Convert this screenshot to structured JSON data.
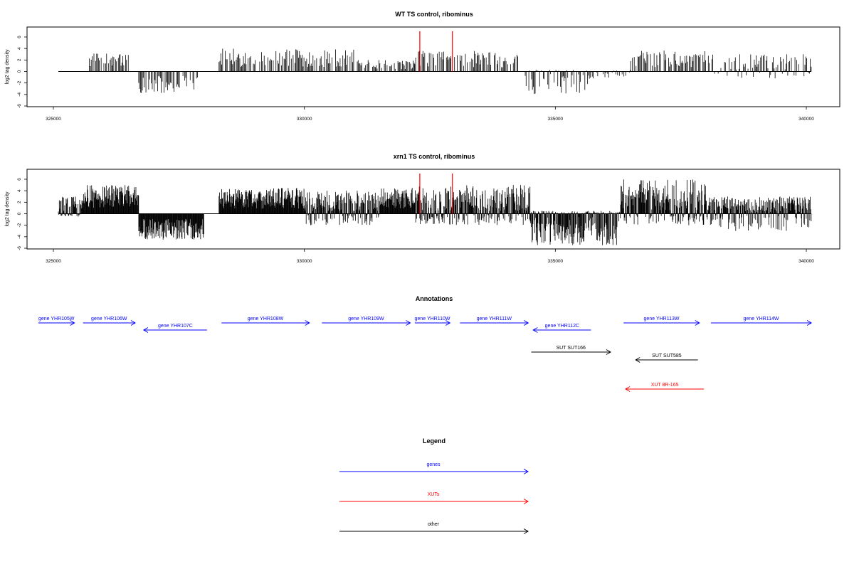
{
  "chart_data": [
    {
      "type": "bar",
      "title": "WT TS control, ribominus",
      "ylabel": "log2 tag density",
      "xlabel": "",
      "xlim": [
        325000,
        340100
      ],
      "ylim": [
        -6,
        7
      ],
      "xticks": [
        325000,
        330000,
        335000,
        340000
      ],
      "yticks": [
        -6,
        -4,
        -2,
        0,
        2,
        4,
        6
      ],
      "grid": false,
      "highlight_positions": [
        332300,
        332950
      ],
      "highlight_color": "#ff0000",
      "signal_regions": [
        {
          "start": 325100,
          "end": 325110,
          "min": 0,
          "max": 1
        },
        {
          "start": 325700,
          "end": 326500,
          "min": 0,
          "max": 3.2
        },
        {
          "start": 326700,
          "end": 327900,
          "min": -4,
          "max": 0
        },
        {
          "start": 328300,
          "end": 331000,
          "min": 0,
          "max": 4
        },
        {
          "start": 331000,
          "end": 332200,
          "min": 0,
          "max": 2
        },
        {
          "start": 332200,
          "end": 334300,
          "min": 0,
          "max": 3.6
        },
        {
          "start": 334400,
          "end": 335700,
          "min": -4,
          "max": 0.3
        },
        {
          "start": 335700,
          "end": 336500,
          "min": -1.2,
          "max": 0.5
        },
        {
          "start": 336500,
          "end": 338100,
          "min": 0,
          "max": 3.8
        },
        {
          "start": 338100,
          "end": 340100,
          "min": -1.2,
          "max": 3
        }
      ]
    },
    {
      "type": "bar",
      "title": "xrn1 TS control, ribominus",
      "ylabel": "log2 tag density",
      "xlabel": "",
      "xlim": [
        325000,
        340100
      ],
      "ylim": [
        -6,
        7
      ],
      "xticks": [
        325000,
        330000,
        335000,
        340000
      ],
      "yticks": [
        -6,
        -4,
        -2,
        0,
        2,
        4,
        6
      ],
      "grid": false,
      "highlight_positions": [
        332300,
        332950
      ],
      "highlight_color": "#ff0000",
      "signal_regions": [
        {
          "start": 325100,
          "end": 325600,
          "min": -0.5,
          "max": 3
        },
        {
          "start": 325600,
          "end": 326700,
          "min": 0,
          "max": 5
        },
        {
          "start": 326700,
          "end": 328000,
          "min": -4.5,
          "max": 0
        },
        {
          "start": 328300,
          "end": 330000,
          "min": 0,
          "max": 4.5
        },
        {
          "start": 330000,
          "end": 331500,
          "min": -2,
          "max": 4
        },
        {
          "start": 331500,
          "end": 332200,
          "min": 0,
          "max": 4.5
        },
        {
          "start": 332200,
          "end": 334500,
          "min": -2,
          "max": 5
        },
        {
          "start": 334500,
          "end": 336300,
          "min": -5.5,
          "max": 0.5
        },
        {
          "start": 336300,
          "end": 338000,
          "min": -2,
          "max": 6
        },
        {
          "start": 338000,
          "end": 340100,
          "min": -3,
          "max": 3
        }
      ]
    }
  ],
  "annotations": {
    "title": "Annotations",
    "xlim": [
      325000,
      340100
    ],
    "features": [
      {
        "label": "gene YHR105W",
        "start": 324700,
        "end": 325420,
        "strand": "+",
        "row": 0,
        "color": "#0000ff"
      },
      {
        "label": "gene YHR106W",
        "start": 325590,
        "end": 326630,
        "strand": "+",
        "row": 0,
        "color": "#0000ff"
      },
      {
        "label": "gene YHR107C",
        "start": 326800,
        "end": 328060,
        "strand": "-",
        "row": 1,
        "color": "#0000ff"
      },
      {
        "label": "gene YHR108W",
        "start": 328350,
        "end": 330100,
        "strand": "+",
        "row": 0,
        "color": "#0000ff"
      },
      {
        "label": "gene YHR109W",
        "start": 330350,
        "end": 332110,
        "strand": "+",
        "row": 0,
        "color": "#0000ff"
      },
      {
        "label": "gene YHR110W",
        "start": 332200,
        "end": 332900,
        "strand": "+",
        "row": 0,
        "color": "#0000ff"
      },
      {
        "label": "gene YHR111W",
        "start": 333100,
        "end": 334460,
        "strand": "+",
        "row": 0,
        "color": "#0000ff"
      },
      {
        "label": "gene YHR112C",
        "start": 334560,
        "end": 335710,
        "strand": "-",
        "row": 1,
        "color": "#0000ff"
      },
      {
        "label": "gene YHR113W",
        "start": 336360,
        "end": 337870,
        "strand": "+",
        "row": 0,
        "color": "#0000ff"
      },
      {
        "label": "gene YHR114W",
        "start": 338100,
        "end": 340100,
        "strand": "+",
        "row": 0,
        "color": "#0000ff"
      },
      {
        "label": "SUT SUT166",
        "start": 334520,
        "end": 336100,
        "strand": "+",
        "row": 2,
        "color": "#000000"
      },
      {
        "label": "SUT SUT585",
        "start": 336600,
        "end": 337840,
        "strand": "-",
        "row": 3,
        "color": "#000000"
      },
      {
        "label": "XUT 8R-165",
        "start": 336400,
        "end": 337960,
        "strand": "-",
        "row": 4,
        "color": "#ff0000"
      }
    ]
  },
  "legend": {
    "title": "Legend",
    "items": [
      {
        "label": "genes",
        "color": "#0000ff"
      },
      {
        "label": "XUTs",
        "color": "#ff0000"
      },
      {
        "label": "other",
        "color": "#000000"
      }
    ]
  }
}
